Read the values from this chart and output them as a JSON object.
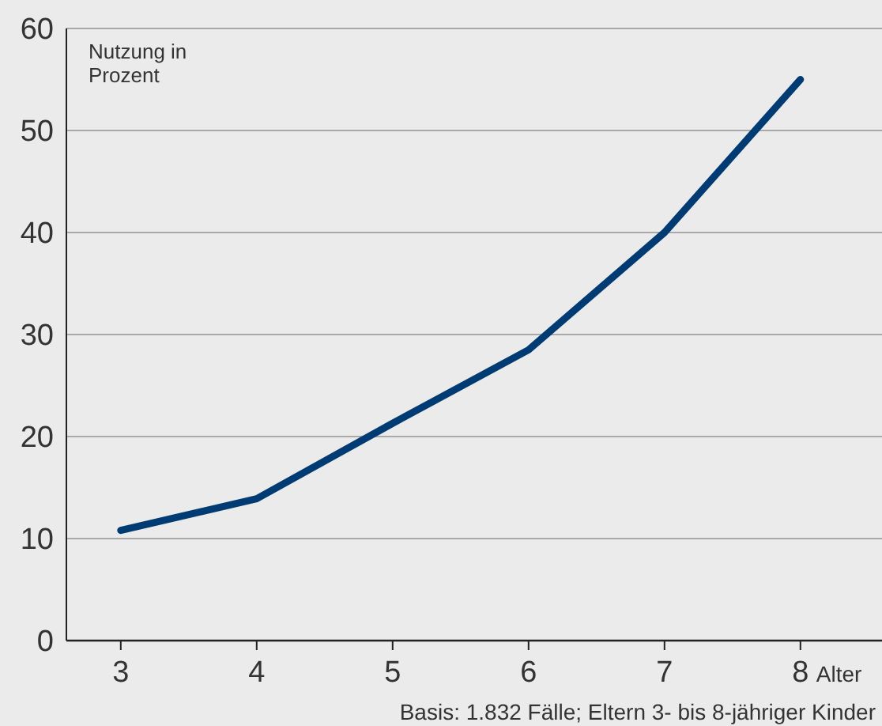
{
  "chart_data": {
    "type": "line",
    "ylabel": "Nutzung in Prozent",
    "xlabel": "Alter",
    "annotations": [
      "Basis: 1.832 Fälle; Eltern 3- bis 8-jähriger Kinder"
    ],
    "x": [
      3,
      4,
      5,
      6,
      7,
      8
    ],
    "series": [
      {
        "color": "#003b73",
        "values": [
          10.8,
          13.9,
          21.3,
          28.5,
          40,
          55
        ]
      }
    ],
    "xlim": [
      2.6,
      8.6
    ],
    "xticks": [
      3,
      4,
      5,
      6,
      7,
      8
    ],
    "ylim": [
      0,
      60
    ],
    "yticks": [
      0,
      10,
      20,
      30,
      40,
      50,
      60
    ],
    "grid": "y",
    "marker": "none",
    "line_style": "solid"
  }
}
